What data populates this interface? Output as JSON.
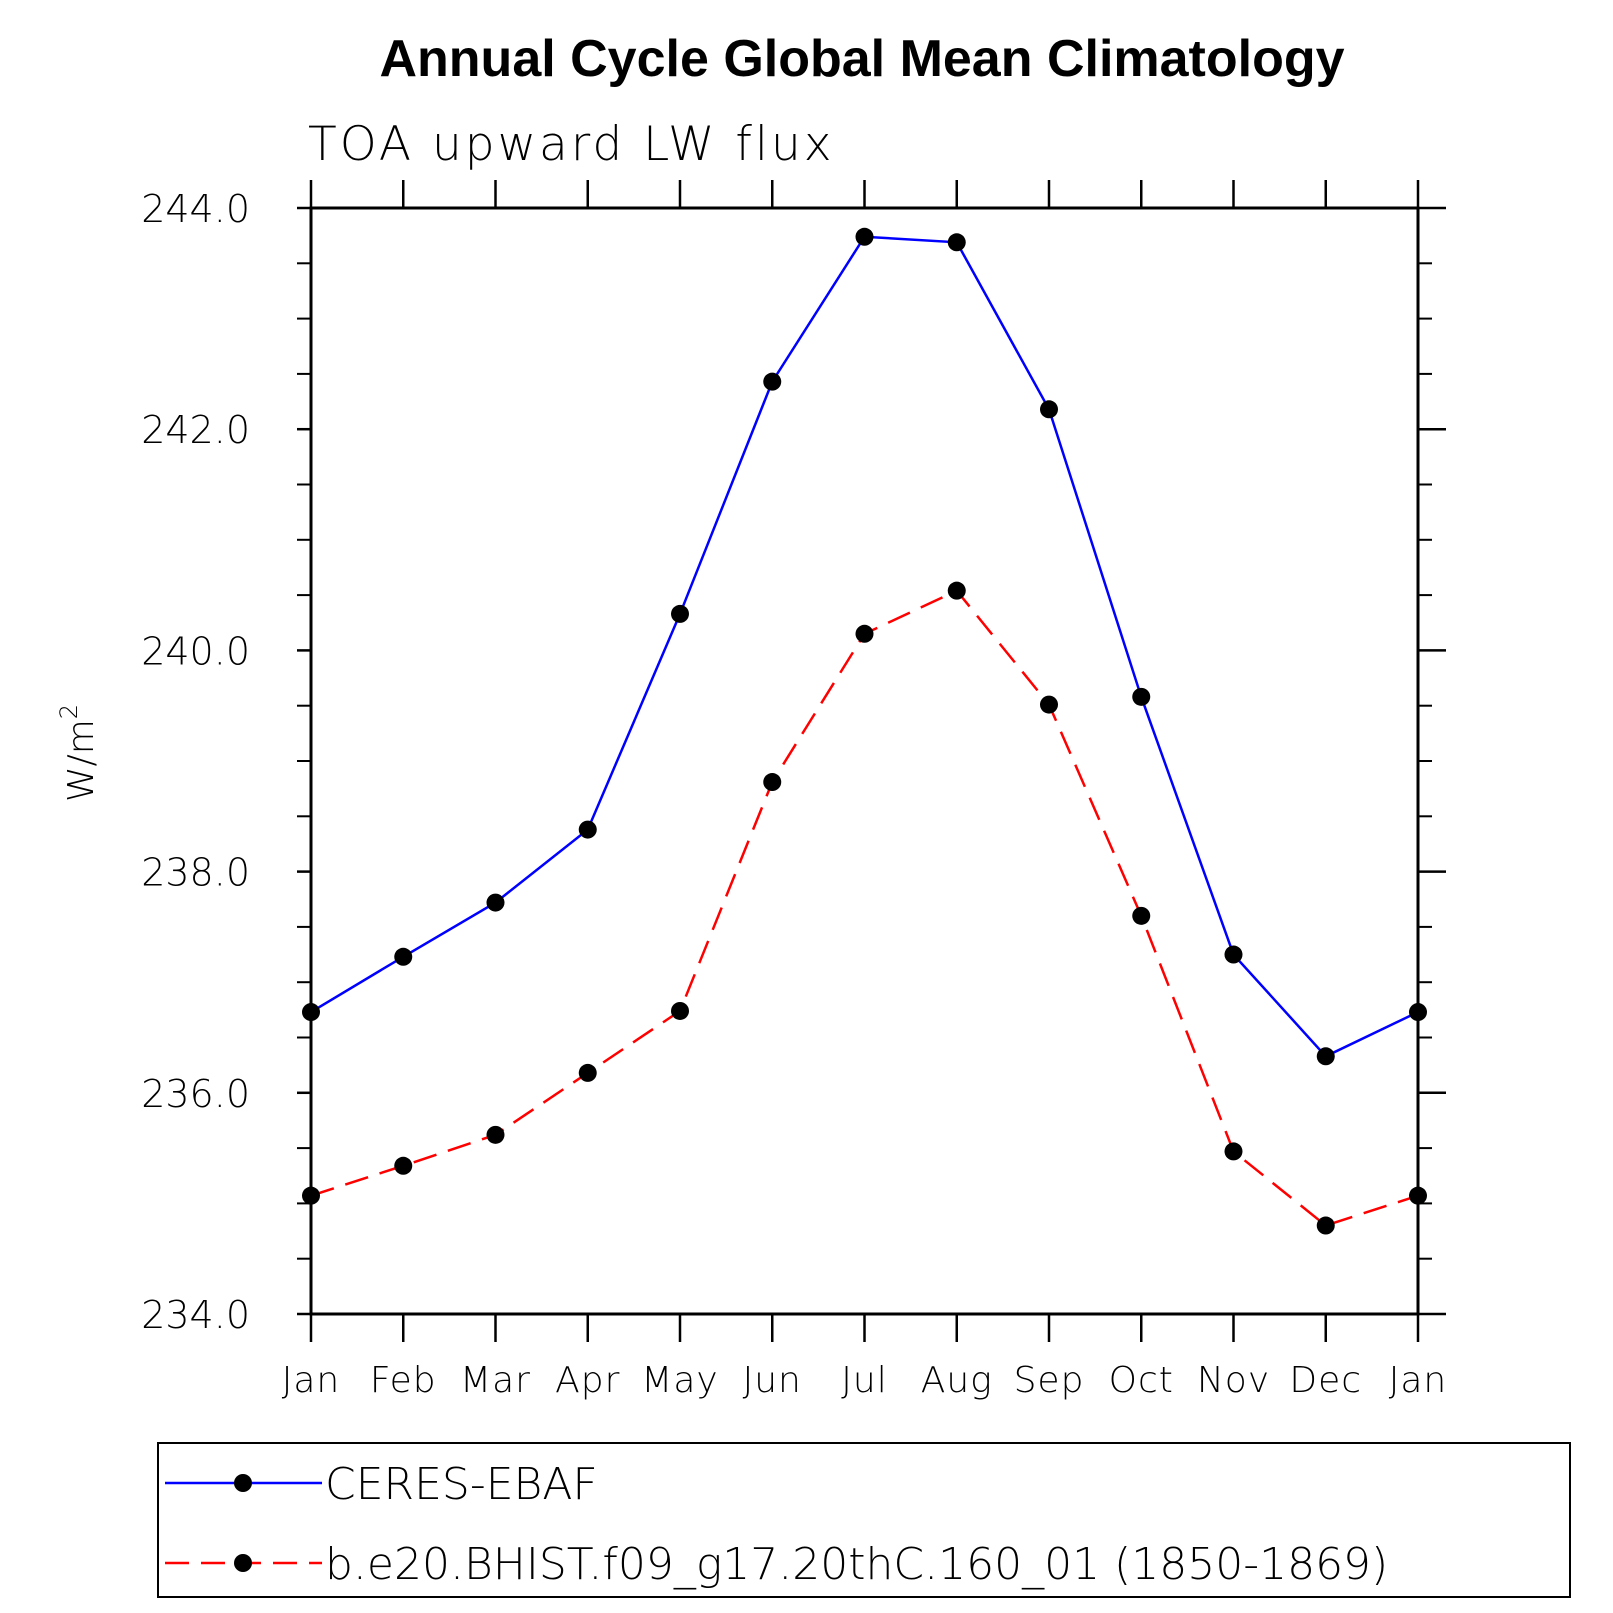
{
  "chart_data": {
    "type": "line",
    "title": "Annual Cycle Global Mean Climatology",
    "subtitle": "TOA upward LW flux",
    "xlabel": "",
    "ylabel": "W/m",
    "ylabel_superscript": "2",
    "categories": [
      "Jan",
      "Feb",
      "Mar",
      "Apr",
      "May",
      "Jun",
      "Jul",
      "Aug",
      "Sep",
      "Oct",
      "Nov",
      "Dec",
      "Jan"
    ],
    "ylim": [
      234.0,
      244.0
    ],
    "yticks": [
      "234.0",
      "236.0",
      "238.0",
      "240.0",
      "242.0",
      "244.0"
    ],
    "grid": false,
    "legend_position": "bottom",
    "series": [
      {
        "name": "CERES-EBAF",
        "color": "#0000ff",
        "dash": "solid",
        "marker": "filled-circle",
        "values": [
          236.73,
          237.23,
          237.72,
          238.38,
          240.33,
          242.43,
          243.74,
          243.69,
          242.18,
          239.58,
          237.25,
          236.33,
          236.73
        ]
      },
      {
        "name": "b.e20.BHIST.f09_g17.20thC.160_01 (1850-1869)",
        "color": "#ff0000",
        "dash": "dashed",
        "marker": "filled-circle",
        "values": [
          235.07,
          235.34,
          235.62,
          236.18,
          236.74,
          238.81,
          240.15,
          240.54,
          239.51,
          237.6,
          235.47,
          234.8,
          235.07
        ]
      }
    ]
  }
}
